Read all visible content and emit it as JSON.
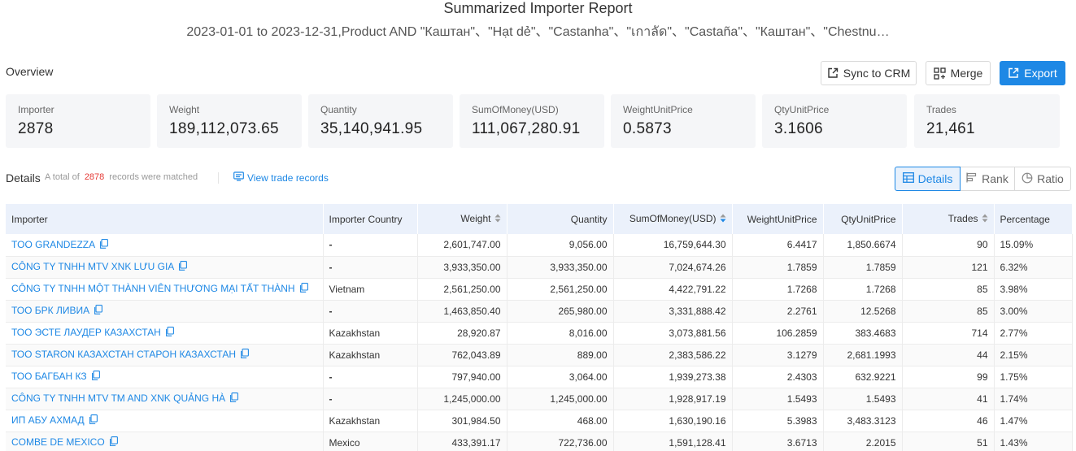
{
  "header": {
    "title": "Summarized Importer Report",
    "subtitle": "2023-01-01 to 2023-12-31,Product AND \"Каштан\"、\"Hạt dẻ\"、\"Castanha\"、\"เกาลัด\"、\"Castaña\"、\"Каштан\"、\"Chestnu…"
  },
  "overview": {
    "label": "Overview",
    "buttons": {
      "sync": "Sync to CRM",
      "merge": "Merge",
      "export": "Export"
    },
    "stats": [
      {
        "label": "Importer",
        "value": "2878"
      },
      {
        "label": "Weight",
        "value": "189,112,073.65"
      },
      {
        "label": "Quantity",
        "value": "35,140,941.95"
      },
      {
        "label": "SumOfMoney(USD)",
        "value": "111,067,280.91"
      },
      {
        "label": "WeightUnitPrice",
        "value": "0.5873"
      },
      {
        "label": "QtyUnitPrice",
        "value": "3.1606"
      },
      {
        "label": "Trades",
        "value": "21,461"
      }
    ]
  },
  "details": {
    "label": "Details",
    "total_prefix": "A total of",
    "total_count": "2878",
    "total_suffix": "records were matched",
    "view_trade": "View trade records",
    "tabs": {
      "details": "Details",
      "rank": "Rank",
      "ratio": "Ratio"
    }
  },
  "accent_color": "#1e88e5",
  "table": {
    "columns": [
      "Importer",
      "Importer Country",
      "Weight",
      "Quantity",
      "SumOfMoney(USD)",
      "WeightUnitPrice",
      "QtyUnitPrice",
      "Trades",
      "Percentage"
    ],
    "rows": [
      {
        "importer": "TOO GRANDEZZA",
        "country": "-",
        "weight": "2,601,747.00",
        "quantity": "9,056.00",
        "sum": "16,759,644.30",
        "wup": "6.4417",
        "qup": "1,850.6674",
        "trades": "90",
        "pct": "15.09%"
      },
      {
        "importer": "CÔNG TY TNHH MTV XNK LƯU GIA",
        "country": "-",
        "weight": "3,933,350.00",
        "quantity": "3,933,350.00",
        "sum": "7,024,674.26",
        "wup": "1.7859",
        "qup": "1.7859",
        "trades": "121",
        "pct": "6.32%"
      },
      {
        "importer": "CÔNG TY TNHH MỘT THÀNH VIÊN THƯƠNG MẠI TẤT THÀNH",
        "country": "Vietnam",
        "weight": "2,561,250.00",
        "quantity": "2,561,250.00",
        "sum": "4,422,791.22",
        "wup": "1.7268",
        "qup": "1.7268",
        "trades": "85",
        "pct": "3.98%"
      },
      {
        "importer": "ТОО БРК ЛИВИА",
        "country": "-",
        "weight": "1,463,850.40",
        "quantity": "265,980.00",
        "sum": "3,331,888.42",
        "wup": "2.2761",
        "qup": "12.5268",
        "trades": "85",
        "pct": "3.00%"
      },
      {
        "importer": "ТОО ЭСТЕ ЛАУДЕР КАЗАХСТАН",
        "country": "Kazakhstan",
        "weight": "28,920.87",
        "quantity": "8,016.00",
        "sum": "3,073,881.56",
        "wup": "106.2859",
        "qup": "383.4683",
        "trades": "714",
        "pct": "2.77%"
      },
      {
        "importer": "ТОО STARON КАЗАХСТАН СТАРОН КАЗАХСТАН",
        "country": "Kazakhstan",
        "weight": "762,043.89",
        "quantity": "889.00",
        "sum": "2,383,586.22",
        "wup": "3.1279",
        "qup": "2,681.1993",
        "trades": "44",
        "pct": "2.15%"
      },
      {
        "importer": "ТОО БАГБАН КЗ",
        "country": "-",
        "weight": "797,940.00",
        "quantity": "3,064.00",
        "sum": "1,939,273.38",
        "wup": "2.4303",
        "qup": "632.9221",
        "trades": "99",
        "pct": "1.75%"
      },
      {
        "importer": "CÔNG TY TNHH MTV TM AND XNK QUẢNG HÀ",
        "country": "-",
        "weight": "1,245,000.00",
        "quantity": "1,245,000.00",
        "sum": "1,928,917.19",
        "wup": "1.5493",
        "qup": "1.5493",
        "trades": "41",
        "pct": "1.74%"
      },
      {
        "importer": "ИП АБУ АХМАД",
        "country": "Kazakhstan",
        "weight": "301,984.50",
        "quantity": "468.00",
        "sum": "1,630,190.16",
        "wup": "5.3983",
        "qup": "3,483.3123",
        "trades": "46",
        "pct": "1.47%"
      },
      {
        "importer": "COMBE DE MEXICO",
        "country": "Mexico",
        "weight": "433,391.17",
        "quantity": "722,736.00",
        "sum": "1,591,128.41",
        "wup": "3.6713",
        "qup": "2.2015",
        "trades": "51",
        "pct": "1.43%"
      }
    ]
  }
}
